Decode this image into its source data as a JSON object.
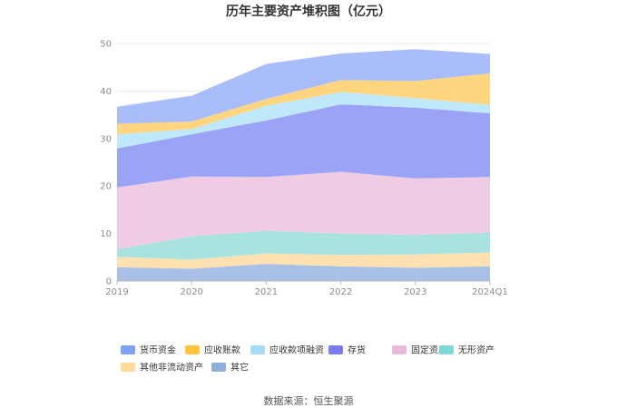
{
  "chart_data": {
    "type": "area",
    "stacked": true,
    "title": "历年主要资产堆积图（亿元）",
    "categories": [
      "2019",
      "2020",
      "2021",
      "2022",
      "2023",
      "2024Q1"
    ],
    "ylim": [
      0,
      50
    ],
    "yticks": [
      "0",
      "10",
      "20",
      "30",
      "40",
      "50"
    ],
    "grid": true,
    "legend_position": "bottom",
    "series": [
      {
        "name": "其它",
        "color": "#A9C0E6",
        "values": [
          2.9,
          2.6,
          3.6,
          3.1,
          2.8,
          3.1
        ]
      },
      {
        "name": "其他非流动资产",
        "color": "#FFE0B0",
        "values": [
          2.2,
          1.9,
          2.2,
          2.4,
          2.8,
          2.9
        ]
      },
      {
        "name": "无形资产",
        "color": "#A8E3E0",
        "values": [
          1.6,
          4.9,
          4.8,
          4.5,
          4.1,
          4.2
        ]
      },
      {
        "name": "固定资产",
        "color": "#EFCCE4",
        "values": [
          13.0,
          12.6,
          11.3,
          13.0,
          11.9,
          11.7
        ]
      },
      {
        "name": "存货",
        "color": "#9BA3F7",
        "values": [
          8.2,
          8.9,
          11.9,
          14.2,
          14.9,
          13.4
        ]
      },
      {
        "name": "应收款项融资",
        "color": "#BFE8FA",
        "values": [
          3.0,
          1.1,
          3.1,
          2.6,
          2.0,
          1.8
        ]
      },
      {
        "name": "应收账款",
        "color": "#FFD580",
        "values": [
          2.2,
          1.6,
          1.4,
          2.5,
          3.6,
          6.6
        ]
      },
      {
        "name": "货币资金",
        "color": "#A9BDFA",
        "values": [
          3.6,
          5.4,
          7.4,
          5.6,
          6.7,
          4.1
        ]
      }
    ],
    "legend_order": [
      "货币资金",
      "应收账款",
      "应收款项融资",
      "存货",
      "固定资产",
      "无形资产",
      "其他非流动资产",
      "其它"
    ],
    "legend_colors": {
      "货币资金": "#7EA2F5",
      "应收账款": "#FFC53D",
      "应收款项融资": "#A6DCF7",
      "存货": "#7B7DEF",
      "固定资产": "#E8B9DA",
      "无形资产": "#7FD8D4",
      "其他非流动资产": "#FFD99A",
      "其它": "#8FAEDC"
    }
  },
  "source_text": "数据来源：恒生聚源"
}
